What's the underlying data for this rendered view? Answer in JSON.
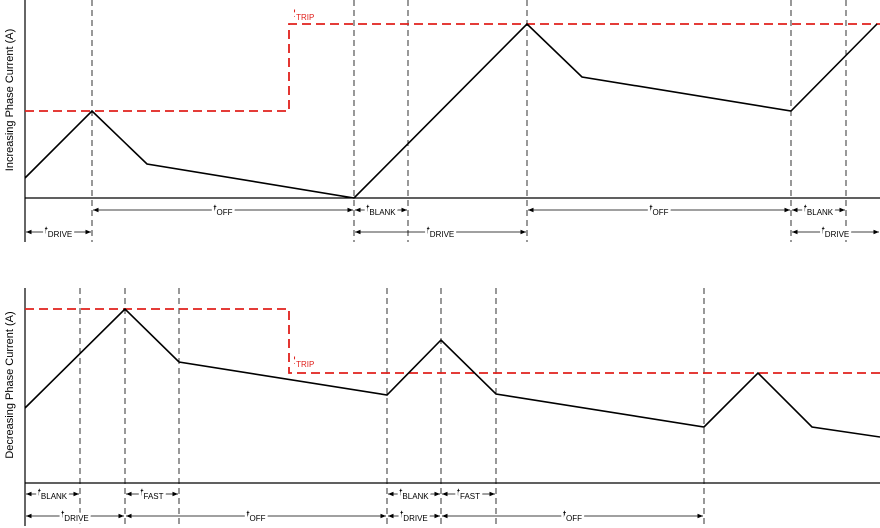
{
  "top": {
    "y_axis_label": "Increasing Phase Current (A)",
    "trip_label": {
      "base": "I",
      "sub": "TRIP"
    },
    "intervals": [
      {
        "base": "t",
        "sub": "OFF"
      },
      {
        "base": "t",
        "sub": "BLANK"
      },
      {
        "base": "t",
        "sub": "OFF"
      },
      {
        "base": "t",
        "sub": "BLANK"
      },
      {
        "base": "t",
        "sub": "DRIVE"
      },
      {
        "base": "t",
        "sub": "DRIVE"
      },
      {
        "base": "t",
        "sub": "DRIVE"
      }
    ]
  },
  "bottom": {
    "y_axis_label": "Decreasing Phase Current (A)",
    "trip_label": {
      "base": "I",
      "sub": "TRIP"
    },
    "intervals": [
      {
        "base": "t",
        "sub": "BLANK"
      },
      {
        "base": "t",
        "sub": "FAST"
      },
      {
        "base": "t",
        "sub": "BLANK"
      },
      {
        "base": "t",
        "sub": "FAST"
      },
      {
        "base": "t",
        "sub": "DRIVE"
      },
      {
        "base": "t",
        "sub": "OFF"
      },
      {
        "base": "t",
        "sub": "DRIVE"
      },
      {
        "base": "t",
        "sub": "OFF"
      }
    ]
  }
}
